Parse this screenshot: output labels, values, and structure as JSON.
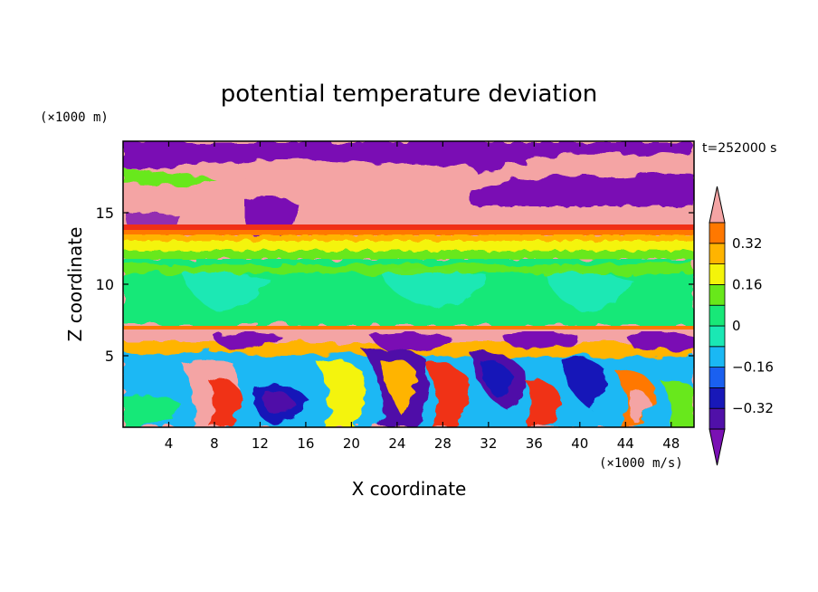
{
  "chart_data": {
    "type": "heatmap",
    "title": "potential temperature deviation",
    "xlabel": "X coordinate",
    "ylabel": "Z coordinate",
    "x_unit": "(×1000 m/s)",
    "y_unit": "(×1000 m)",
    "time_label": "t=252000 s",
    "xlim": [
      0,
      50
    ],
    "ylim": [
      0,
      20
    ],
    "x_ticks": [
      4,
      8,
      12,
      16,
      20,
      24,
      28,
      32,
      36,
      40,
      44,
      48
    ],
    "y_ticks": [
      5,
      10,
      15
    ],
    "colorbar": {
      "levels": [
        -0.4,
        -0.32,
        -0.24,
        -0.16,
        -0.08,
        0,
        0.08,
        0.16,
        0.24,
        0.32,
        0.4
      ],
      "tick_labels": [
        "0.32",
        "0.16",
        "0",
        "−0.16",
        "−0.32"
      ],
      "tick_values": [
        0.32,
        0.16,
        0,
        -0.16,
        -0.32
      ],
      "colors": [
        "#7a10b4",
        "#5010a8",
        "#1818b8",
        "#1a60f0",
        "#1ab8f4",
        "#1ae8b4",
        "#18e878",
        "#68e81a",
        "#f4f40a",
        "#ffb400",
        "#ff7800",
        "#f03018",
        "#f4a4a4"
      ]
    },
    "layers": [
      {
        "z_range": [
          0,
          7
        ],
        "description": "mixed convective eddies"
      },
      {
        "z_range": [
          7,
          11.5
        ],
        "value": 0.04
      },
      {
        "z_range": [
          11.5,
          13
        ],
        "value": 0.2
      },
      {
        "z_range": [
          13,
          14
        ],
        "value": 0.36
      },
      {
        "z_range": [
          14,
          20
        ],
        "value": 0.45
      }
    ]
  }
}
